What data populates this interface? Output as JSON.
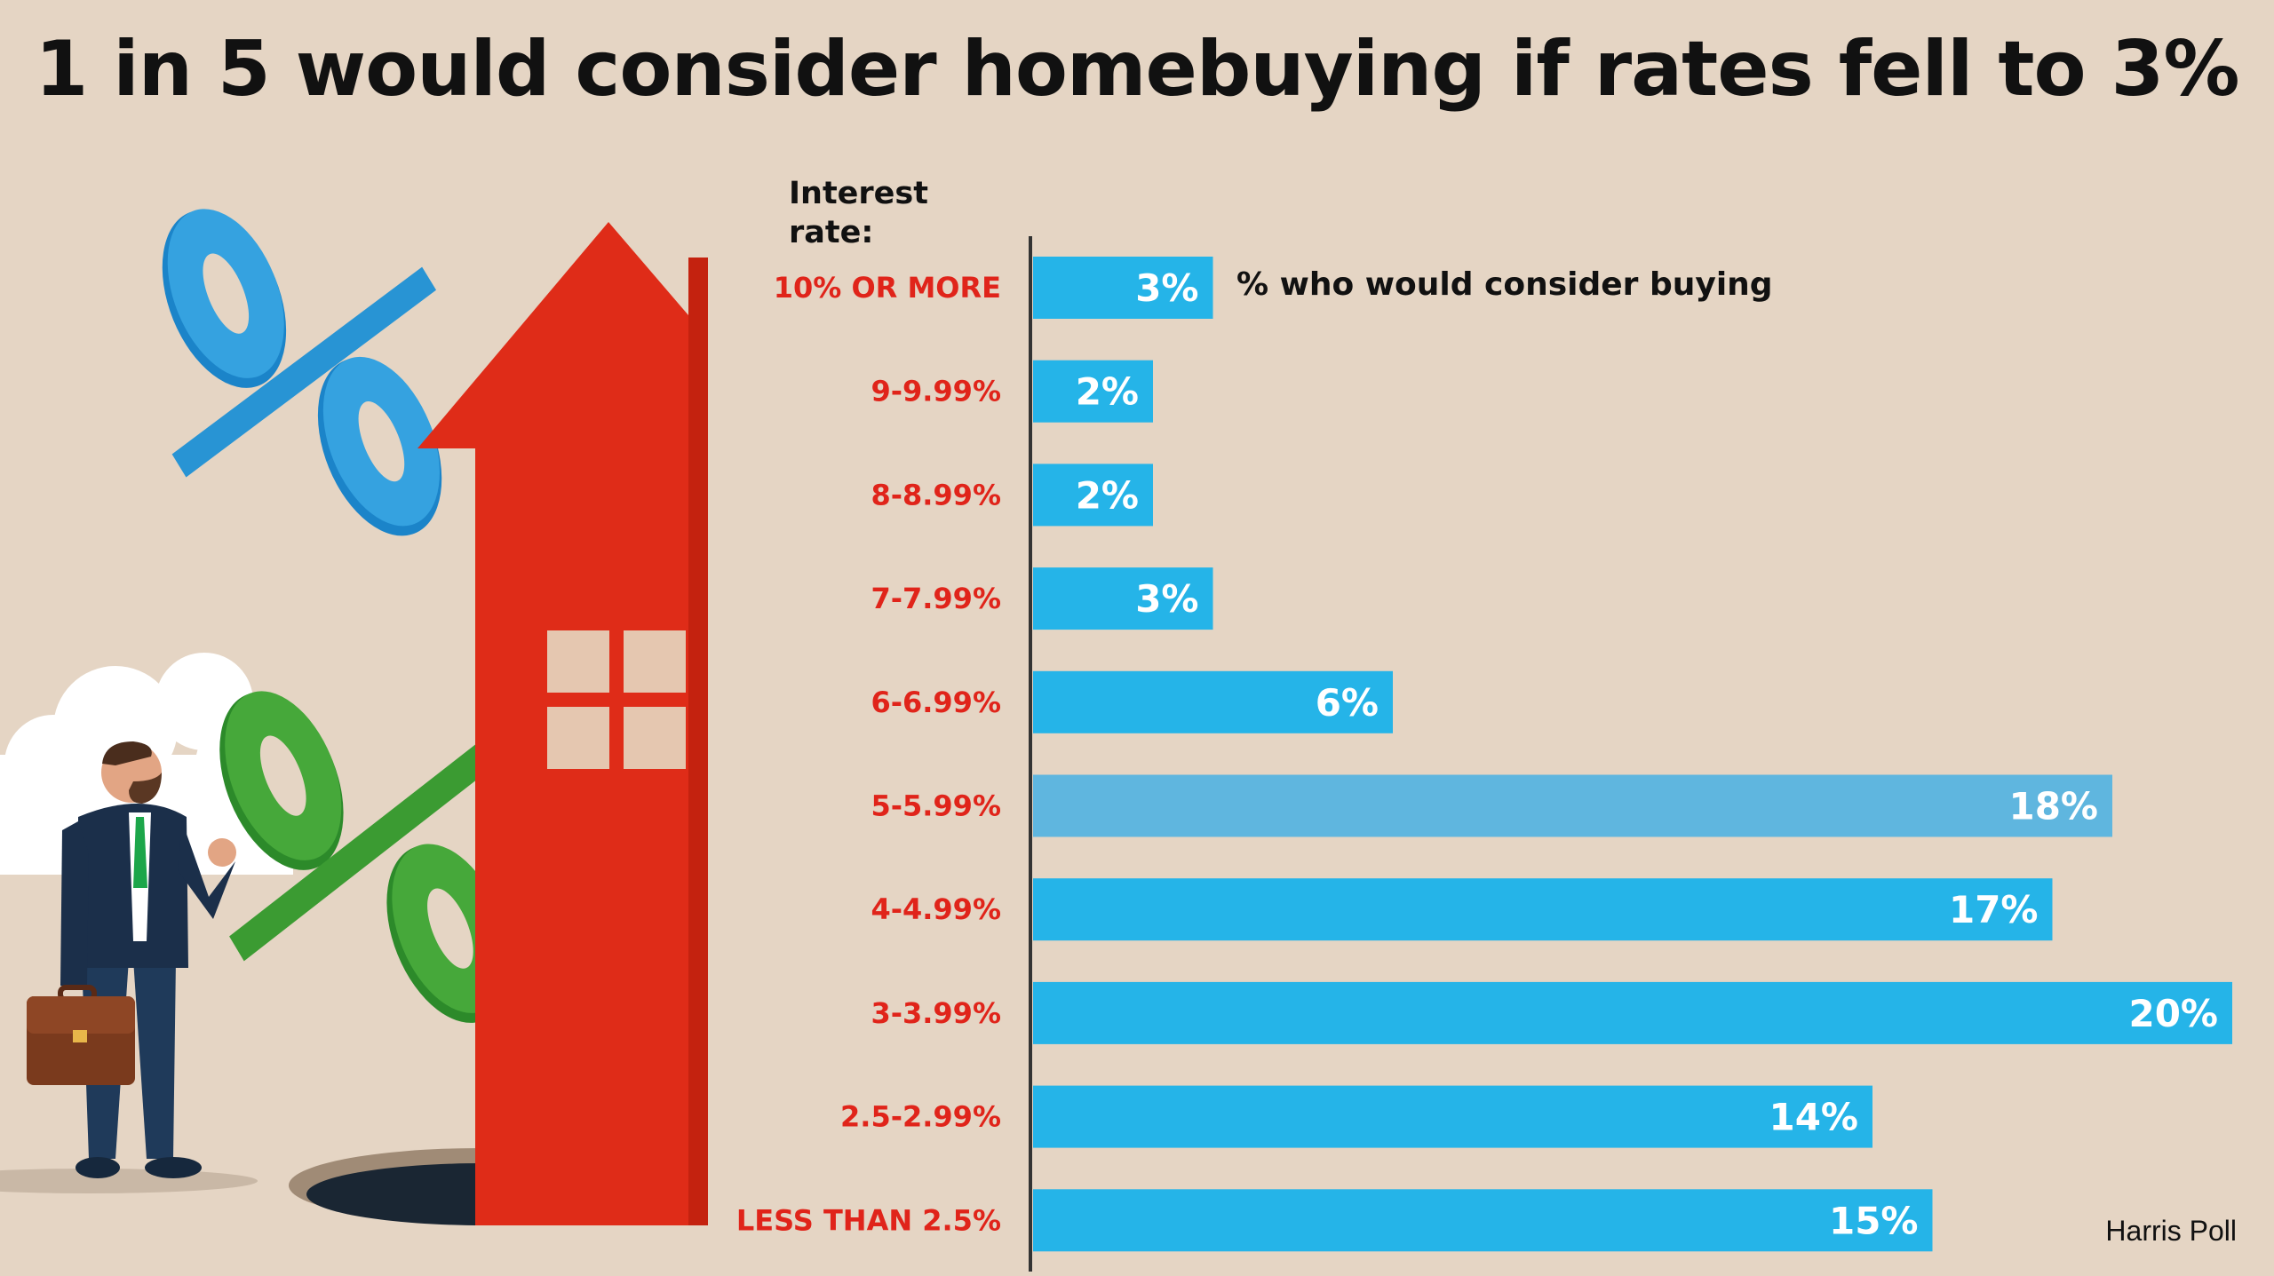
{
  "chart_data": {
    "type": "bar",
    "orientation": "horizontal",
    "title": "1 in 5 would consider homebuying if rates fell to 3%",
    "axis_title": "Interest rate:",
    "series_label": "% who would consider buying",
    "categories": [
      "10% OR MORE",
      "9-9.99%",
      "8-8.99%",
      "7-7.99%",
      "6-6.99%",
      "5-5.99%",
      "4-4.99%",
      "3-3.99%",
      "2.5-2.99%",
      "LESS THAN 2.5%"
    ],
    "values": [
      3,
      2,
      2,
      3,
      6,
      18,
      17,
      20,
      14,
      15
    ],
    "value_labels": [
      "3%",
      "2%",
      "2%",
      "3%",
      "6%",
      "18%",
      "17%",
      "20%",
      "14%",
      "15%"
    ],
    "highlight_index": 5,
    "xlim": [
      0,
      20
    ],
    "grid": false,
    "colors": {
      "bar": "#25b4e8",
      "bar_highlight": "#5fb6df",
      "category_text": "#e0241a",
      "value_text": "#ffffff",
      "background": "#e5d5c4"
    }
  },
  "source": "Harris Poll",
  "icons": [
    "house-icon",
    "percent-icon",
    "businessman-icon",
    "briefcase-icon",
    "cloud-icon"
  ]
}
